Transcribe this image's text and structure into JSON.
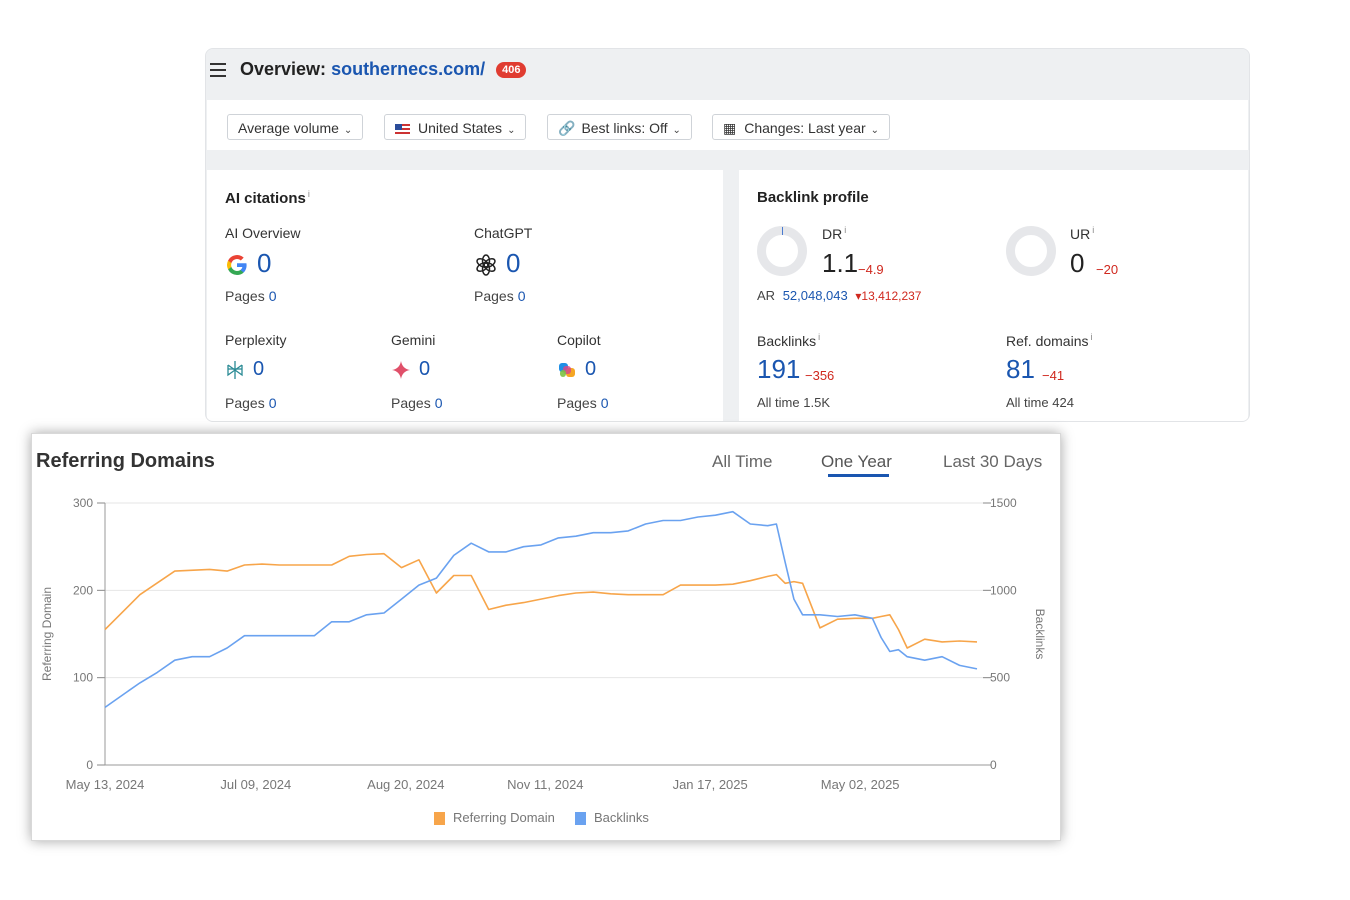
{
  "overview": {
    "title_prefix": "Overview:",
    "domain": "southernecs.com/",
    "badge": "406"
  },
  "filters": [
    {
      "label": "Average volume"
    },
    {
      "label": "United States"
    },
    {
      "label": "Best links: Off"
    },
    {
      "label": "Changes: Last year"
    }
  ],
  "ai_citations": {
    "title": "AI citations",
    "info": "i",
    "items": [
      {
        "name": "AI Overview",
        "value": "0",
        "pages_label": "Pages",
        "pages": "0",
        "icon": "google-icon"
      },
      {
        "name": "ChatGPT",
        "value": "0",
        "pages_label": "Pages",
        "pages": "0",
        "icon": "chatgpt-icon"
      },
      {
        "name": "Perplexity",
        "value": "0",
        "pages_label": "Pages",
        "pages": "0",
        "icon": "perplexity-icon"
      },
      {
        "name": "Gemini",
        "value": "0",
        "pages_label": "Pages",
        "pages": "0",
        "icon": "gemini-icon"
      },
      {
        "name": "Copilot",
        "value": "0",
        "pages_label": "Pages",
        "pages": "0",
        "icon": "copilot-icon"
      }
    ]
  },
  "backlink_profile": {
    "title": "Backlink profile",
    "dr": {
      "label": "DR",
      "value": "1.1",
      "change": "−4.9"
    },
    "ur": {
      "label": "UR",
      "value": "0",
      "change": "−20"
    },
    "ar": {
      "label": "AR",
      "value": "52,048,043",
      "change": "13,412,237"
    },
    "backlinks": {
      "label": "Backlinks",
      "value": "191",
      "change": "−356",
      "all_time_label": "All time",
      "all_time": "1.5K"
    },
    "ref_domains": {
      "label": "Ref. domains",
      "value": "81",
      "change": "−41",
      "all_time_label": "All time",
      "all_time": "424"
    }
  },
  "chart_panel": {
    "title": "Referring Domains",
    "tabs": [
      "All Time",
      "One Year",
      "Last 30 Days"
    ],
    "active_tab": "One Year"
  },
  "colors": {
    "accent": "#1a56b0",
    "negative": "#d0281e",
    "referring_domain_series": "#f7a54a",
    "backlinks_series": "#6aa2f0"
  },
  "chart_data": {
    "type": "line",
    "title": "Referring Domains",
    "ylabel": "Referring Domain",
    "y2label": "Backlinks",
    "ylim": [
      0,
      300
    ],
    "y2lim": [
      0,
      1500
    ],
    "yticks": [
      "0",
      "100",
      "200",
      "300"
    ],
    "y2ticks": [
      "0",
      "500",
      "1000",
      "1500"
    ],
    "xticks": [
      "May 13, 2024",
      "Jul 09, 2024",
      "Aug 20, 2024",
      "Nov 11, 2024",
      "Jan 17, 2025",
      "May 02, 2025"
    ],
    "legend": [
      "Referring Domain",
      "Backlinks"
    ],
    "legend_position": "bottom",
    "grid": true,
    "series": [
      {
        "name": "Referring Domain",
        "axis": "left",
        "x": [
          0,
          0.04,
          0.08,
          0.12,
          0.14,
          0.16,
          0.18,
          0.2,
          0.22,
          0.24,
          0.26,
          0.28,
          0.3,
          0.32,
          0.34,
          0.36,
          0.38,
          0.4,
          0.42,
          0.44,
          0.46,
          0.48,
          0.5,
          0.52,
          0.54,
          0.56,
          0.58,
          0.6,
          0.62,
          0.64,
          0.66,
          0.68,
          0.7,
          0.72,
          0.74,
          0.76,
          0.77,
          0.78,
          0.79,
          0.8,
          0.82,
          0.84,
          0.86,
          0.88,
          0.89,
          0.9,
          0.91,
          0.92,
          0.94,
          0.96,
          0.98,
          1.0
        ],
        "values": [
          155,
          195,
          222,
          224,
          222,
          229,
          230,
          229,
          229,
          229,
          229,
          239,
          241,
          242,
          226,
          235,
          197,
          217,
          217,
          178,
          183,
          186,
          190,
          194,
          197,
          198,
          196,
          195,
          195,
          195,
          206,
          206,
          206,
          207,
          211,
          216,
          218,
          208,
          210,
          208,
          157,
          167,
          168,
          168,
          170,
          172,
          155,
          134,
          144,
          141,
          142,
          141
        ]
      },
      {
        "name": "Backlinks",
        "axis": "right",
        "x": [
          0,
          0.02,
          0.04,
          0.06,
          0.08,
          0.1,
          0.12,
          0.14,
          0.16,
          0.18,
          0.2,
          0.22,
          0.24,
          0.26,
          0.28,
          0.3,
          0.32,
          0.34,
          0.36,
          0.38,
          0.4,
          0.42,
          0.44,
          0.46,
          0.48,
          0.5,
          0.52,
          0.54,
          0.56,
          0.58,
          0.6,
          0.62,
          0.64,
          0.66,
          0.68,
          0.7,
          0.72,
          0.74,
          0.76,
          0.77,
          0.78,
          0.79,
          0.8,
          0.82,
          0.84,
          0.86,
          0.88,
          0.89,
          0.9,
          0.91,
          0.92,
          0.94,
          0.96,
          0.98,
          1.0
        ],
        "values": [
          330,
          400,
          470,
          530,
          600,
          620,
          620,
          670,
          740,
          740,
          740,
          740,
          740,
          820,
          820,
          860,
          870,
          950,
          1030,
          1070,
          1200,
          1270,
          1220,
          1220,
          1250,
          1260,
          1300,
          1310,
          1330,
          1330,
          1340,
          1380,
          1400,
          1400,
          1420,
          1430,
          1450,
          1380,
          1370,
          1380,
          1160,
          950,
          860,
          860,
          850,
          860,
          840,
          730,
          650,
          660,
          620,
          600,
          620,
          570,
          550
        ]
      }
    ]
  }
}
